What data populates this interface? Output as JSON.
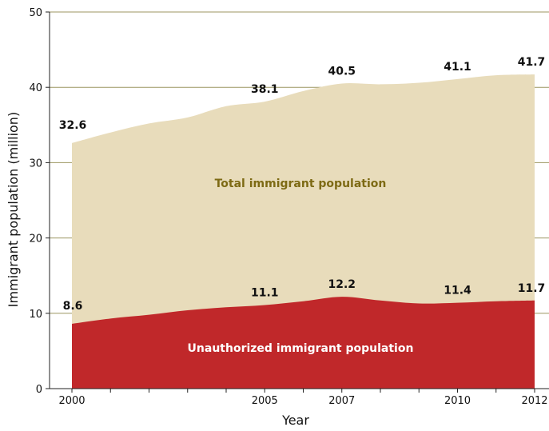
{
  "chart_data": {
    "type": "area",
    "xlabel": "Year",
    "ylabel": "Immigrant population (million)",
    "ylim": [
      0,
      50
    ],
    "xlim": [
      2000,
      2012
    ],
    "yticks": [
      "0",
      "10",
      "20",
      "30",
      "40",
      "50"
    ],
    "xticks": [
      "2000",
      "2005",
      "2007",
      "2010",
      "2012"
    ],
    "x": [
      2000,
      2001,
      2002,
      2003,
      2004,
      2005,
      2006,
      2007,
      2008,
      2009,
      2010,
      2011,
      2012
    ],
    "grid": "horizontal",
    "series": [
      {
        "name": "Total immigrant population",
        "color": "#e8dcbb",
        "label_color": "#7d6a14",
        "values": [
          32.6,
          34.0,
          35.2,
          36.0,
          37.5,
          38.1,
          39.5,
          40.5,
          40.4,
          40.6,
          41.1,
          41.6,
          41.7
        ],
        "point_labels": [
          {
            "x": 2000,
            "text": "32.6"
          },
          {
            "x": 2005,
            "text": "38.1"
          },
          {
            "x": 2007,
            "text": "40.5"
          },
          {
            "x": 2010,
            "text": "41.1"
          },
          {
            "x": 2012,
            "text": "41.7"
          }
        ]
      },
      {
        "name": "Unauthorized immigrant population",
        "color": "#c0282a",
        "label_color": "#ffffff",
        "values": [
          8.6,
          9.3,
          9.8,
          10.4,
          10.8,
          11.1,
          11.6,
          12.2,
          11.7,
          11.3,
          11.4,
          11.6,
          11.7
        ],
        "point_labels": [
          {
            "x": 2000,
            "text": "8.6"
          },
          {
            "x": 2005,
            "text": "11.1"
          },
          {
            "x": 2007,
            "text": "12.2"
          },
          {
            "x": 2010,
            "text": "11.4"
          },
          {
            "x": 2012,
            "text": "11.7"
          }
        ]
      }
    ]
  }
}
